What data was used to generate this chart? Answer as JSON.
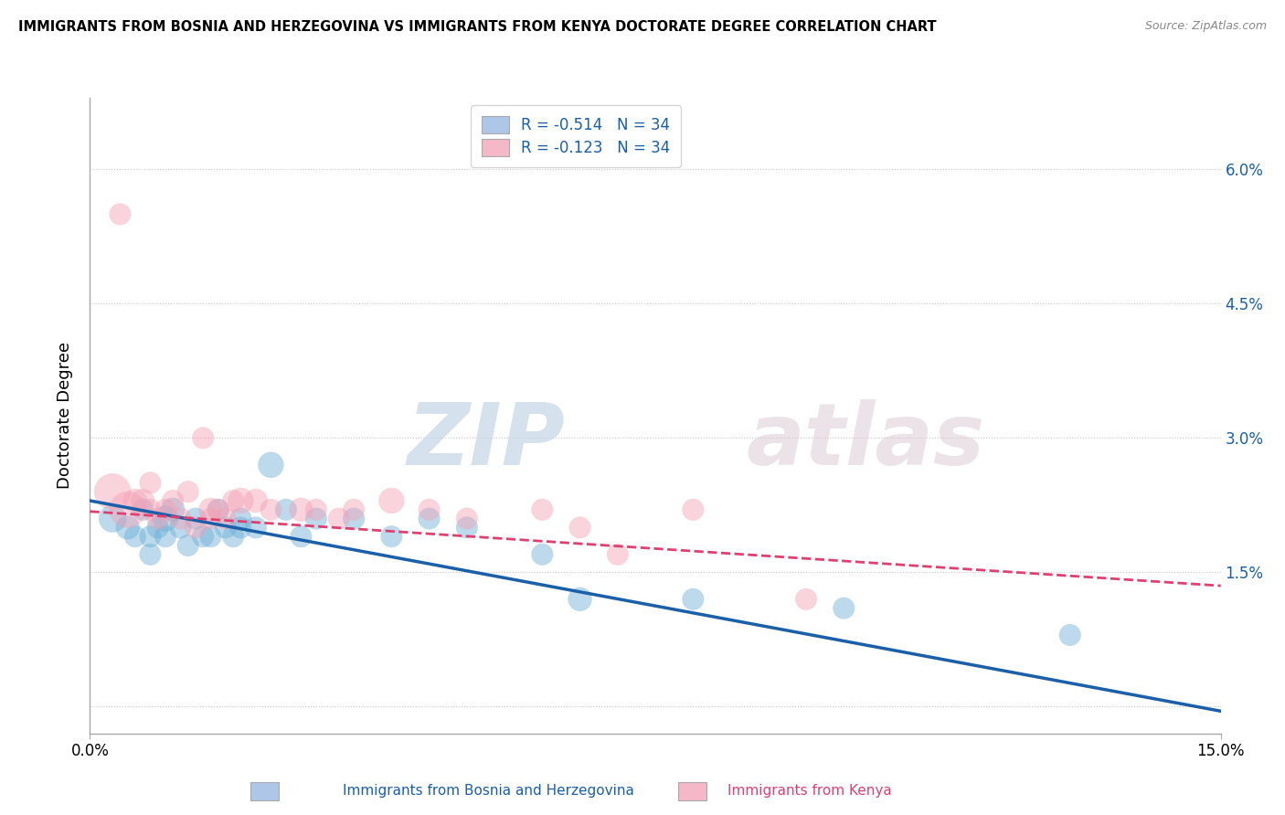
{
  "title": "IMMIGRANTS FROM BOSNIA AND HERZEGOVINA VS IMMIGRANTS FROM KENYA DOCTORATE DEGREE CORRELATION CHART",
  "source": "Source: ZipAtlas.com",
  "ylabel": "Doctorate Degree",
  "legend_blue_label": "R = -0.514   N = 34",
  "legend_pink_label": "R = -0.123   N = 34",
  "legend_blue_color": "#aec6e8",
  "legend_pink_color": "#f4b8c8",
  "watermark_zip": "ZIP",
  "watermark_atlas": "atlas",
  "ytick_labels": [
    "6.0%",
    "4.5%",
    "3.0%",
    "1.5%",
    ""
  ],
  "ytick_values": [
    0.06,
    0.045,
    0.03,
    0.015,
    0.0
  ],
  "xlim": [
    0.0,
    0.15
  ],
  "ylim": [
    -0.003,
    0.068
  ],
  "xtick_positions": [
    0.0,
    0.15
  ],
  "xtick_labels": [
    "0.0%",
    "15.0%"
  ],
  "blue_scatter_x": [
    0.003,
    0.005,
    0.006,
    0.007,
    0.008,
    0.008,
    0.009,
    0.01,
    0.01,
    0.011,
    0.012,
    0.013,
    0.014,
    0.015,
    0.016,
    0.017,
    0.018,
    0.019,
    0.02,
    0.02,
    0.022,
    0.024,
    0.026,
    0.028,
    0.03,
    0.035,
    0.04,
    0.045,
    0.05,
    0.06,
    0.065,
    0.08,
    0.1,
    0.13
  ],
  "blue_scatter_y": [
    0.021,
    0.02,
    0.019,
    0.022,
    0.019,
    0.017,
    0.02,
    0.021,
    0.019,
    0.022,
    0.02,
    0.018,
    0.021,
    0.019,
    0.019,
    0.022,
    0.02,
    0.019,
    0.021,
    0.02,
    0.02,
    0.027,
    0.022,
    0.019,
    0.021,
    0.021,
    0.019,
    0.021,
    0.02,
    0.017,
    0.012,
    0.012,
    0.011,
    0.008
  ],
  "blue_scatter_s": [
    40,
    30,
    25,
    25,
    25,
    25,
    25,
    35,
    25,
    30,
    25,
    25,
    25,
    25,
    25,
    25,
    25,
    25,
    25,
    25,
    25,
    35,
    25,
    25,
    25,
    25,
    25,
    25,
    25,
    25,
    30,
    25,
    25,
    25
  ],
  "pink_scatter_x": [
    0.003,
    0.004,
    0.005,
    0.006,
    0.007,
    0.008,
    0.008,
    0.009,
    0.01,
    0.011,
    0.012,
    0.013,
    0.014,
    0.015,
    0.016,
    0.016,
    0.017,
    0.018,
    0.019,
    0.02,
    0.022,
    0.024,
    0.028,
    0.03,
    0.033,
    0.035,
    0.04,
    0.045,
    0.05,
    0.06,
    0.065,
    0.07,
    0.08,
    0.095
  ],
  "pink_scatter_y": [
    0.024,
    0.055,
    0.022,
    0.023,
    0.023,
    0.022,
    0.025,
    0.021,
    0.022,
    0.023,
    0.021,
    0.024,
    0.02,
    0.03,
    0.021,
    0.022,
    0.022,
    0.021,
    0.023,
    0.023,
    0.023,
    0.022,
    0.022,
    0.022,
    0.021,
    0.022,
    0.023,
    0.022,
    0.021,
    0.022,
    0.02,
    0.017,
    0.022,
    0.012
  ],
  "pink_scatter_s": [
    70,
    25,
    70,
    30,
    30,
    25,
    25,
    25,
    25,
    25,
    25,
    25,
    25,
    25,
    25,
    30,
    25,
    25,
    25,
    35,
    30,
    25,
    30,
    25,
    25,
    25,
    35,
    25,
    25,
    25,
    25,
    25,
    25,
    25
  ],
  "blue_line_x": [
    0.0,
    0.15
  ],
  "blue_line_y": [
    0.023,
    -0.0005
  ],
  "pink_line_x": [
    0.0,
    0.15
  ],
  "pink_line_y": [
    0.0218,
    0.0135
  ],
  "blue_color": "#6baed6",
  "pink_color": "#f4a0b5",
  "blue_line_color": "#1a5fa8",
  "pink_line_color": "#e04070",
  "grid_color": "#c8c8c8",
  "bg_color": "#ffffff"
}
